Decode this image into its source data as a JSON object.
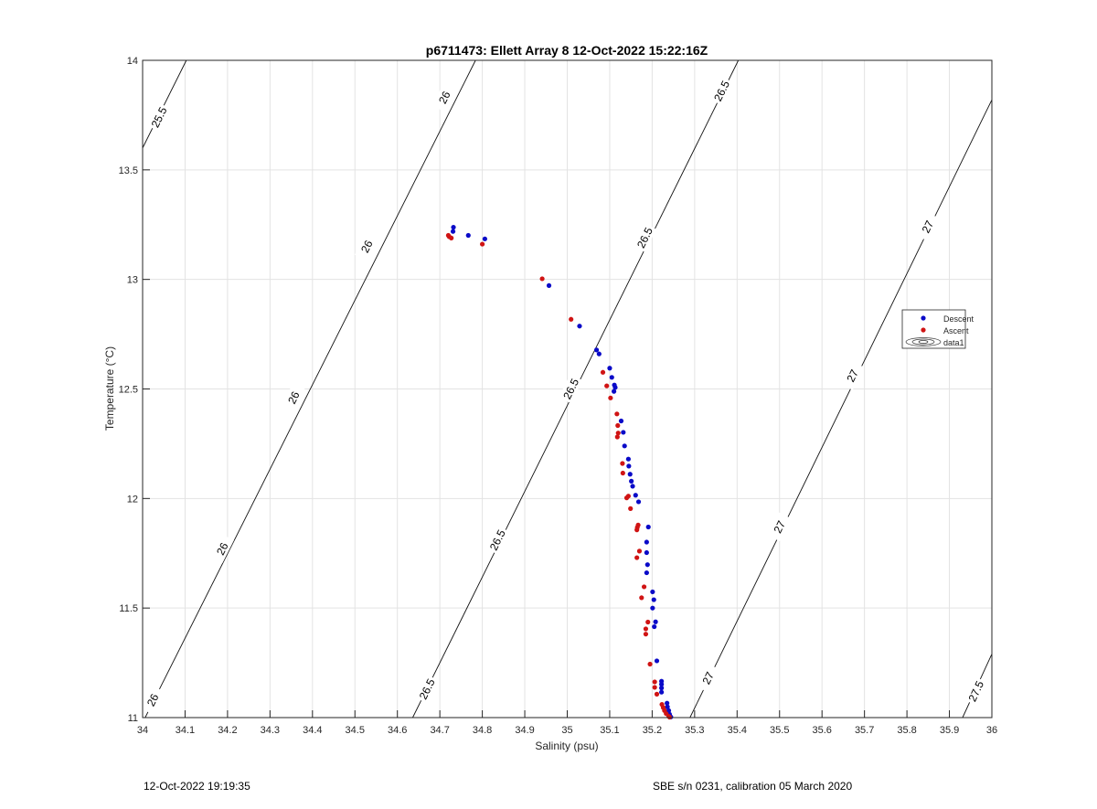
{
  "chart_data": {
    "type": "scatter",
    "title": "p6711473: Ellett Array 8 12-Oct-2022 15:22:16Z",
    "xlabel": "Salinity (psu)",
    "ylabel": "Temperature (°C)",
    "xlim": [
      34,
      36
    ],
    "ylim": [
      11,
      14
    ],
    "xticks": [
      "34",
      "34.1",
      "34.2",
      "34.3",
      "34.4",
      "34.5",
      "34.6",
      "34.7",
      "34.8",
      "34.9",
      "35",
      "35.1",
      "35.2",
      "35.3",
      "35.4",
      "35.5",
      "35.6",
      "35.7",
      "35.8",
      "35.9",
      "36"
    ],
    "yticks": [
      "11",
      "11.5",
      "12",
      "12.5",
      "13",
      "13.5",
      "14"
    ],
    "grid": true,
    "legend_position": "right",
    "legend": [
      "Descent",
      "Ascent",
      "data1"
    ],
    "series": [
      {
        "name": "Descent",
        "color": "#0a0ac8",
        "points": [
          [
            34.732,
            13.238
          ],
          [
            34.731,
            13.219
          ],
          [
            34.767,
            13.201
          ],
          [
            34.806,
            13.185
          ],
          [
            34.957,
            12.972
          ],
          [
            35.029,
            12.787
          ],
          [
            35.069,
            12.678
          ],
          [
            35.075,
            12.66
          ],
          [
            35.1,
            12.595
          ],
          [
            35.105,
            12.553
          ],
          [
            35.111,
            12.518
          ],
          [
            35.113,
            12.507
          ],
          [
            35.11,
            12.489
          ],
          [
            35.127,
            12.354
          ],
          [
            35.132,
            12.302
          ],
          [
            35.135,
            12.24
          ],
          [
            35.144,
            12.18
          ],
          [
            35.145,
            12.148
          ],
          [
            35.148,
            12.111
          ],
          [
            35.151,
            12.079
          ],
          [
            35.154,
            12.056
          ],
          [
            35.161,
            12.015
          ],
          [
            35.168,
            11.985
          ],
          [
            35.191,
            11.87
          ],
          [
            35.187,
            11.801
          ],
          [
            35.187,
            11.753
          ],
          [
            35.189,
            11.698
          ],
          [
            35.187,
            11.661
          ],
          [
            35.201,
            11.574
          ],
          [
            35.204,
            11.538
          ],
          [
            35.201,
            11.5
          ],
          [
            35.208,
            11.437
          ],
          [
            35.205,
            11.415
          ],
          [
            35.211,
            11.259
          ],
          [
            35.222,
            11.166
          ],
          [
            35.222,
            11.152
          ],
          [
            35.222,
            11.135
          ],
          [
            35.222,
            11.116
          ],
          [
            35.235,
            11.066
          ],
          [
            35.236,
            11.049
          ],
          [
            35.239,
            11.032
          ],
          [
            35.241,
            11.015
          ],
          [
            35.244,
            11.003
          ]
        ]
      },
      {
        "name": "Ascent",
        "color": "#d01414",
        "points": [
          [
            34.72,
            13.201
          ],
          [
            34.727,
            13.189
          ],
          [
            34.722,
            13.195
          ],
          [
            34.8,
            13.161
          ],
          [
            34.941,
            13.003
          ],
          [
            35.009,
            12.818
          ],
          [
            35.084,
            12.576
          ],
          [
            35.093,
            12.514
          ],
          [
            35.102,
            12.459
          ],
          [
            35.117,
            12.386
          ],
          [
            35.119,
            12.333
          ],
          [
            35.12,
            12.299
          ],
          [
            35.118,
            12.281
          ],
          [
            35.13,
            12.16
          ],
          [
            35.131,
            12.116
          ],
          [
            35.14,
            12.003
          ],
          [
            35.144,
            12.011
          ],
          [
            35.149,
            11.954
          ],
          [
            35.167,
            11.879
          ],
          [
            35.165,
            11.868
          ],
          [
            35.164,
            11.857
          ],
          [
            35.17,
            11.76
          ],
          [
            35.164,
            11.73
          ],
          [
            35.181,
            11.597
          ],
          [
            35.175,
            11.547
          ],
          [
            35.19,
            11.436
          ],
          [
            35.185,
            11.405
          ],
          [
            35.185,
            11.381
          ],
          [
            35.195,
            11.244
          ],
          [
            35.206,
            11.163
          ],
          [
            35.206,
            11.138
          ],
          [
            35.211,
            11.107
          ],
          [
            35.223,
            11.06
          ],
          [
            35.226,
            11.046
          ],
          [
            35.229,
            11.032
          ],
          [
            35.233,
            11.018
          ],
          [
            35.239,
            11.006
          ],
          [
            35.241,
            11.002
          ]
        ]
      }
    ],
    "contours": [
      {
        "level": "25.5",
        "line": [
          [
            34.0,
            13.6
          ],
          [
            34.103,
            14.0
          ]
        ],
        "labels": [
          [
            34.039,
            13.74
          ]
        ]
      },
      {
        "level": "26",
        "line": [
          [
            34.006,
            11.0
          ],
          [
            34.784,
            14.0
          ]
        ],
        "labels": [
          [
            34.711,
            13.83
          ],
          [
            34.528,
            13.15
          ],
          [
            34.356,
            12.46
          ],
          [
            34.188,
            11.77
          ],
          [
            34.024,
            11.08
          ]
        ]
      },
      {
        "level": "26.5",
        "line": [
          [
            34.636,
            11.0
          ],
          [
            35.403,
            14.0
          ]
        ],
        "labels": [
          [
            35.364,
            13.86
          ],
          [
            35.183,
            13.19
          ],
          [
            35.009,
            12.5
          ],
          [
            34.836,
            11.81
          ],
          [
            34.67,
            11.13
          ]
        ]
      },
      {
        "level": "27",
        "line": [
          [
            35.289,
            11.0
          ],
          [
            36.0,
            13.82
          ]
        ],
        "labels": [
          [
            35.849,
            13.24
          ],
          [
            35.672,
            12.56
          ],
          [
            35.5,
            11.87
          ],
          [
            35.332,
            11.18
          ]
        ]
      },
      {
        "level": "27.5",
        "line": [
          [
            35.931,
            11.0
          ],
          [
            36.0,
            11.29
          ]
        ],
        "labels": [
          [
            35.963,
            11.12
          ]
        ]
      }
    ]
  },
  "footer": {
    "timestamp": "12-Oct-2022 19:19:35",
    "instrument": "SBE s/n 0231, calibration 05 March 2020"
  }
}
